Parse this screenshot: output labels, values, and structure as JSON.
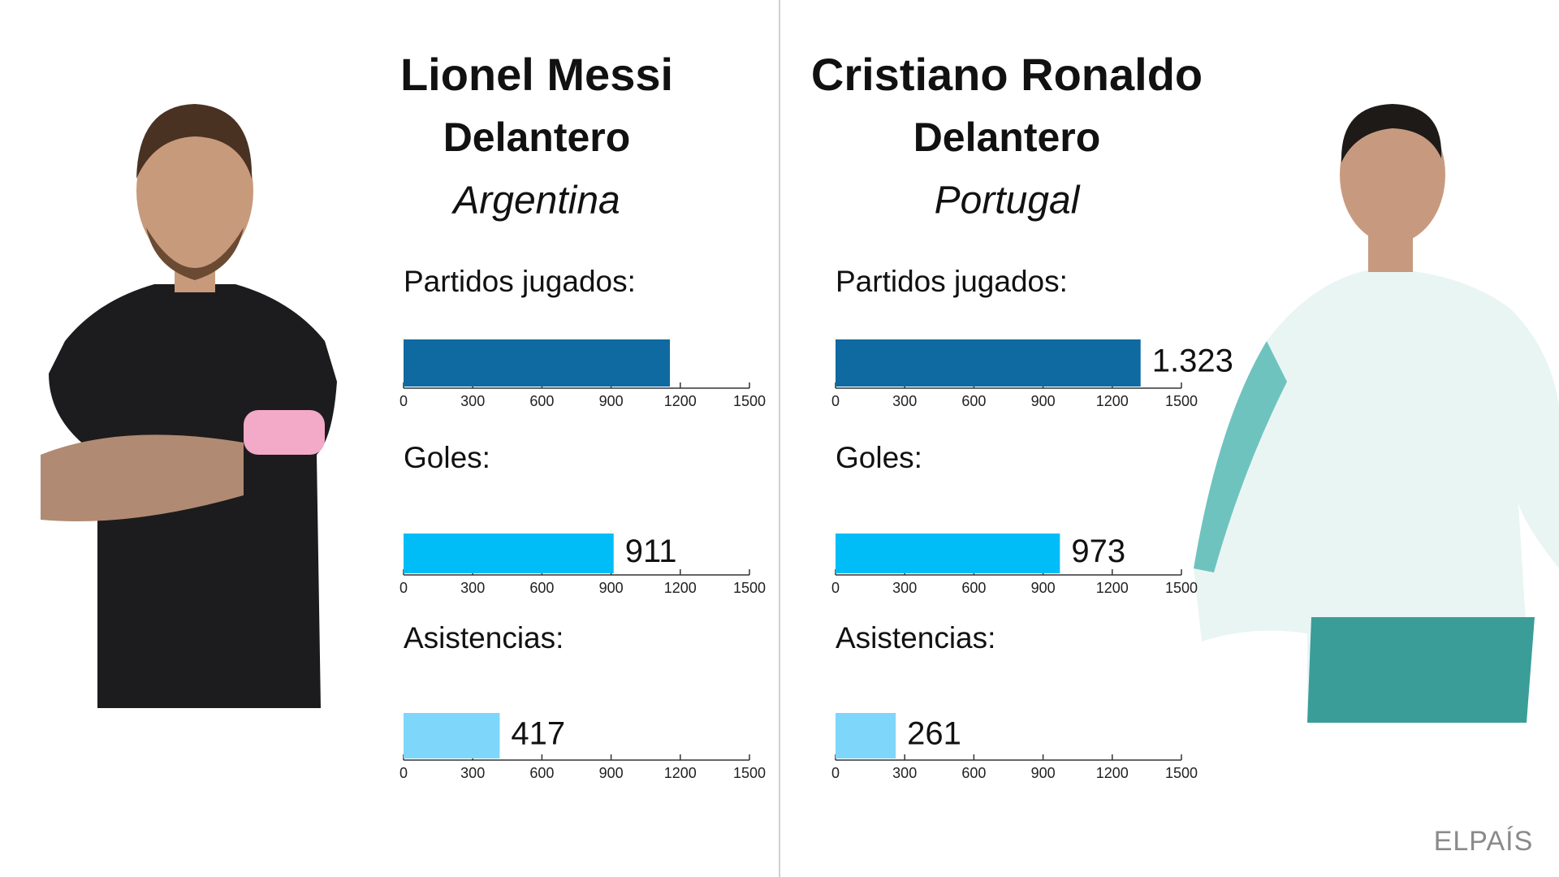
{
  "players": [
    {
      "name": "Lionel Messi",
      "position": "Delantero",
      "country": "Argentina"
    },
    {
      "name": "Cristiano Ronaldo",
      "position": "Delantero",
      "country": "Portugal"
    }
  ],
  "source": "ELPAÍS",
  "chart_data": [
    {
      "type": "bar",
      "title": "Partidos jugados:",
      "values": [
        1155
      ],
      "color": "#0e6aa0",
      "xlim": [
        0,
        1500
      ],
      "xticks": [
        0,
        300,
        600,
        900,
        1200,
        1500
      ]
    },
    {
      "type": "bar",
      "title": "Goles:",
      "values": [
        911
      ],
      "color": "#00bdf7",
      "xlim": [
        0,
        1500
      ],
      "xticks": [
        0,
        300,
        600,
        900,
        1200,
        1500
      ]
    },
    {
      "type": "bar",
      "title": "Asistencias:",
      "values": [
        417
      ],
      "color": "#7ed6fb",
      "xlim": [
        0,
        1500
      ],
      "xticks": [
        0,
        300,
        600,
        900,
        1200,
        1500
      ]
    },
    {
      "type": "bar",
      "title": "Partidos jugados:",
      "values": [
        1323
      ],
      "value_labels": [
        "1.323"
      ],
      "color": "#0e6aa0",
      "xlim": [
        0,
        1500
      ],
      "xticks": [
        0,
        300,
        600,
        900,
        1200,
        1500
      ]
    },
    {
      "type": "bar",
      "title": "Goles:",
      "values": [
        973
      ],
      "color": "#00bdf7",
      "xlim": [
        0,
        1500
      ],
      "xticks": [
        0,
        300,
        600,
        900,
        1200,
        1500
      ]
    },
    {
      "type": "bar",
      "title": "Asistencias:",
      "values": [
        261
      ],
      "color": "#7ed6fb",
      "xlim": [
        0,
        1500
      ],
      "xticks": [
        0,
        300,
        600,
        900,
        1200,
        1500
      ]
    }
  ]
}
